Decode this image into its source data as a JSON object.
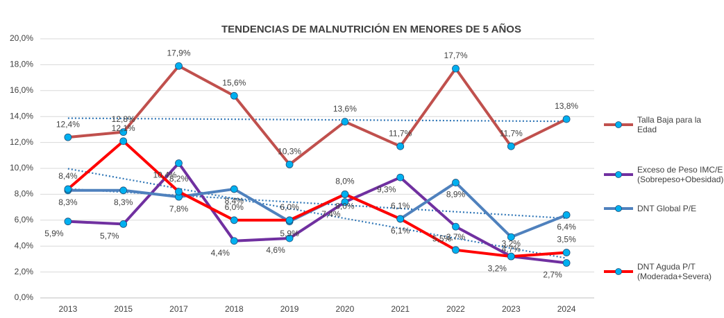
{
  "chart_data": {
    "type": "line",
    "title": "TENDENCIAS DE MALNUTRICIÓN EN MENORES DE 5 AÑOS",
    "categories": [
      "2013",
      "2015",
      "2017",
      "2018",
      "2019",
      "2020",
      "2021",
      "2022",
      "2023",
      "2024"
    ],
    "ylim": [
      0,
      20
    ],
    "yticks": [
      {
        "value": 0,
        "label": "0,0%"
      },
      {
        "value": 2,
        "label": "2,0%"
      },
      {
        "value": 4,
        "label": "4,0%"
      },
      {
        "value": 6,
        "label": "6,0%"
      },
      {
        "value": 8,
        "label": "8,0%"
      },
      {
        "value": 10,
        "label": "10,0%"
      },
      {
        "value": 12,
        "label": "12,0%"
      },
      {
        "value": 14,
        "label": "14,0%"
      },
      {
        "value": 16,
        "label": "16,0%"
      },
      {
        "value": 18,
        "label": "18,0%"
      },
      {
        "value": 20,
        "label": "20,0%"
      }
    ],
    "grid": true,
    "marker_color": "#00b0f0",
    "trend_color": "#2e75b6",
    "series": [
      {
        "name": "Talla Baja para la Edad",
        "color": "#c0504d",
        "trendline": true,
        "values": [
          12.4,
          12.8,
          17.9,
          15.6,
          10.3,
          13.6,
          11.7,
          17.7,
          11.7,
          13.8
        ],
        "value_labels": [
          "12,4%",
          "12,8%",
          "17,9%",
          "15,6%",
          "10,3%",
          "13,6%",
          "11,7%",
          "17,7%",
          "11,7%",
          "13,8%"
        ]
      },
      {
        "name": "Exceso de Peso IMC/E (Sobrepeso+Obesidad)",
        "color": "#7030a0",
        "trendline": false,
        "values": [
          5.9,
          5.7,
          10.4,
          4.4,
          4.6,
          7.4,
          9.3,
          5.5,
          3.2,
          2.7
        ],
        "value_labels": [
          "5,9%",
          "5,7%",
          "10,4%",
          "4,4%",
          "4,6%",
          "7,4%",
          "9,3%",
          "5,5%",
          "3,2%",
          "2,7%"
        ]
      },
      {
        "name": "DNT Global P/E",
        "color": "#4f81bd",
        "trendline": true,
        "values": [
          8.3,
          8.3,
          7.8,
          8.4,
          5.9,
          8.0,
          6.1,
          8.9,
          4.7,
          6.4
        ],
        "value_labels": [
          "8,3%",
          "8,3%",
          "7,8%",
          "8,4%",
          "5,9%",
          "8,0%",
          "6,1%",
          "8,9%",
          "4,7%",
          "6,4%"
        ]
      },
      {
        "name": "DNT Aguda P/T (Moderada+Severa)",
        "color": "#ff0000",
        "trendline": true,
        "values": [
          8.4,
          12.1,
          8.2,
          6.0,
          6.0,
          8.0,
          6.1,
          3.7,
          3.2,
          3.5
        ],
        "value_labels": [
          "8,4%",
          "12,1%",
          "8,2%",
          "6,0%",
          "6,0%",
          "8,0%",
          "6,1%",
          "3,7%",
          "3,2%",
          "3,5%"
        ]
      }
    ]
  }
}
